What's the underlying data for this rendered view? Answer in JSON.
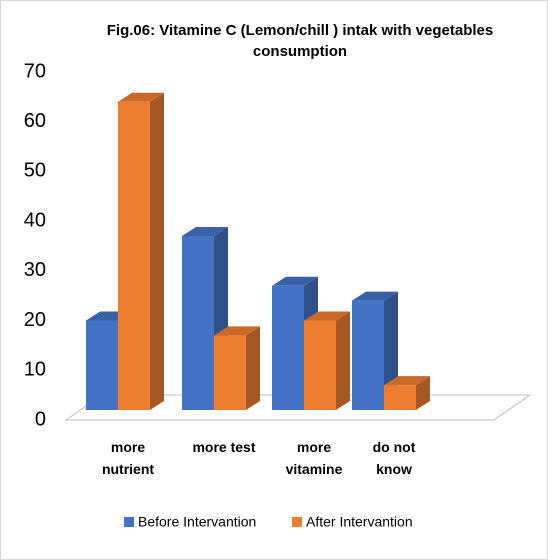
{
  "chart_data": {
    "type": "bar3d",
    "title": "Fig.06: Vitamine C (Lemon/chill ) intak with vegetables consumption",
    "categories": [
      "more nutrient",
      "more test",
      "more vitamine",
      "do not know"
    ],
    "series": [
      {
        "name": "Before Intervantion",
        "color": "#4472c4",
        "values": [
          18,
          35,
          25,
          22
        ]
      },
      {
        "name": "After Intervantion",
        "color": "#ed7d31",
        "values": [
          62,
          15,
          18,
          5
        ]
      }
    ],
    "ylim": [
      0,
      70
    ],
    "yticks": [
      0,
      10,
      20,
      30,
      40,
      50,
      60,
      70
    ],
    "legend": "bottom"
  }
}
